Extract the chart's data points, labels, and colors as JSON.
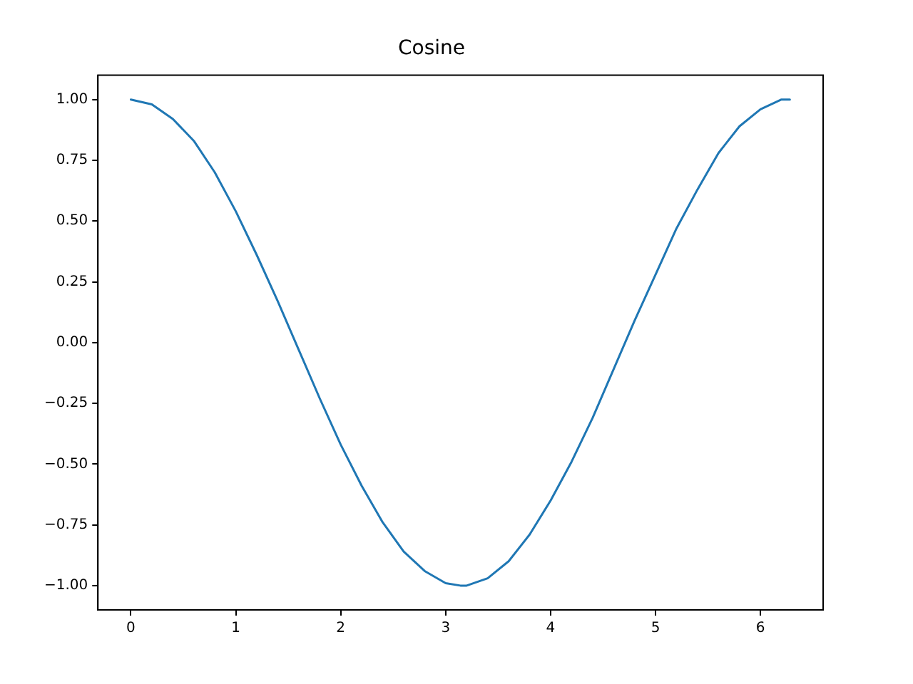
{
  "chart_data": {
    "type": "line",
    "title": "Cosine",
    "x": [
      0,
      0.2,
      0.4,
      0.6,
      0.8,
      1.0,
      1.2,
      1.4,
      1.6,
      1.8,
      2.0,
      2.2,
      2.4,
      2.6,
      2.8,
      3.0,
      3.14,
      3.2,
      3.4,
      3.6,
      3.8,
      4.0,
      4.2,
      4.4,
      4.6,
      4.8,
      5.0,
      5.2,
      5.4,
      5.6,
      5.8,
      6.0,
      6.2,
      6.28
    ],
    "series": [
      {
        "color": "#1f77b4",
        "values": [
          1.0,
          0.98,
          0.92,
          0.83,
          0.7,
          0.54,
          0.36,
          0.17,
          -0.03,
          -0.23,
          -0.42,
          -0.59,
          -0.74,
          -0.86,
          -0.94,
          -0.99,
          -1.0,
          -1.0,
          -0.97,
          -0.9,
          -0.79,
          -0.65,
          -0.49,
          -0.31,
          -0.11,
          0.09,
          0.28,
          0.47,
          0.63,
          0.78,
          0.89,
          0.96,
          1.0,
          1.0
        ]
      }
    ],
    "xlim": [
      -0.314,
      6.597
    ],
    "ylim": [
      -1.1,
      1.1
    ],
    "xticks": [
      0,
      1,
      2,
      3,
      4,
      5,
      6
    ],
    "yticks": [
      {
        "value": -1,
        "label": "−1.00"
      },
      {
        "value": -0.75,
        "label": "−0.75"
      },
      {
        "value": -0.5,
        "label": "−0.50"
      },
      {
        "value": -0.25,
        "label": "−0.25"
      },
      {
        "value": 0,
        "label": "0.00"
      },
      {
        "value": 0.25,
        "label": "0.25"
      },
      {
        "value": 0.5,
        "label": "0.50"
      },
      {
        "value": 0.75,
        "label": "0.75"
      },
      {
        "value": 1,
        "label": "1.00"
      }
    ],
    "grid": false,
    "marker": "none",
    "line_style": "solid",
    "legend": false
  }
}
